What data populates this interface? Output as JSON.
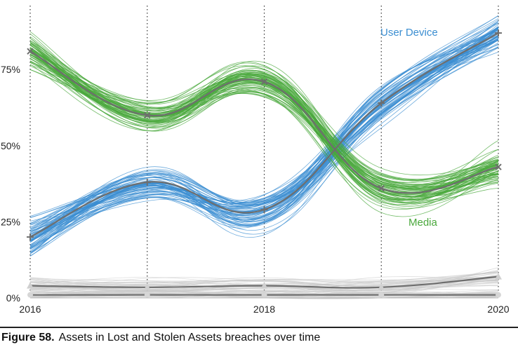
{
  "caption": {
    "figure": "Figure 58.",
    "text": "Assets in Lost and Stolen Assets breaches over time"
  },
  "colors": {
    "user_device": "#3b8ed1",
    "media": "#4aa83c",
    "other": "#c8c8c8",
    "median": "#6e6e6e",
    "grid": "#333333"
  },
  "chart_data": {
    "type": "line",
    "title": "",
    "xlabel": "",
    "ylabel": "",
    "x": [
      2016,
      2017,
      2018,
      2019,
      2020
    ],
    "x_tick_labels": [
      "2016",
      "2018",
      "2020"
    ],
    "x_tick_values": [
      2016,
      2018,
      2020
    ],
    "y_tick_labels": [
      "0%",
      "25%",
      "50%",
      "75%"
    ],
    "y_tick_values": [
      0,
      25,
      50,
      75
    ],
    "ylim": [
      0,
      96
    ],
    "xlim": [
      2016,
      2020
    ],
    "grid": "vertical dotted at each year",
    "series": [
      {
        "name": "User Device",
        "values": [
          20,
          38,
          29,
          64,
          87
        ],
        "marker": "+",
        "spread": 6
      },
      {
        "name": "Media",
        "values": [
          81,
          60,
          71,
          36,
          43
        ],
        "marker": "x",
        "spread": 6
      },
      {
        "name": "",
        "values": [
          4,
          3.5,
          4,
          3.5,
          7
        ],
        "marker": "triangle",
        "spread": 3
      },
      {
        "name": "",
        "values": [
          1,
          1,
          1,
          1,
          1
        ],
        "marker": "circle",
        "spread": 2
      }
    ]
  }
}
